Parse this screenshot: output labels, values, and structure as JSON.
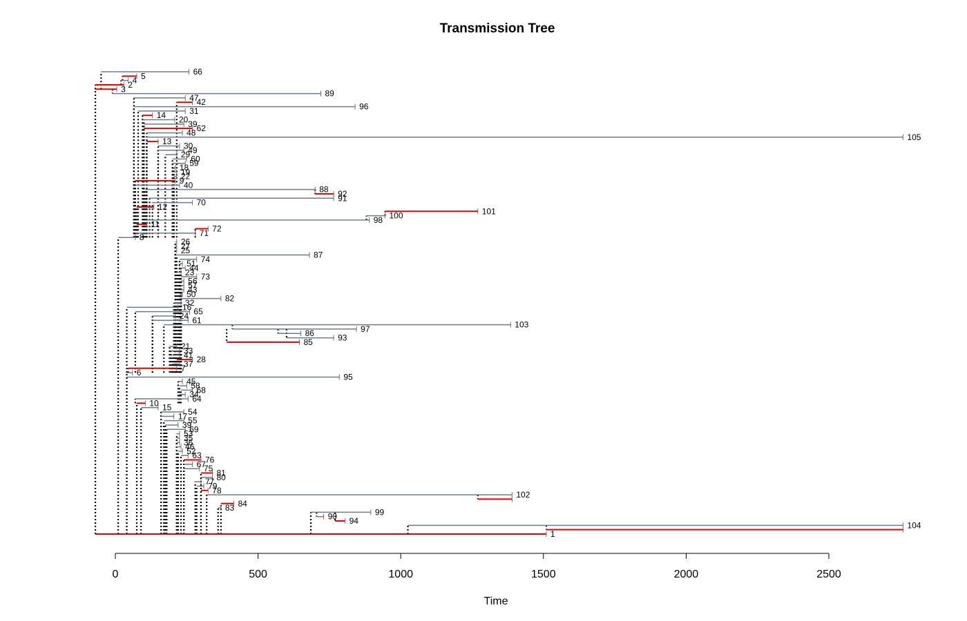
{
  "title": "Transmission Tree",
  "x_axis": {
    "label": "Time",
    "min": -50,
    "max": 2800,
    "ticks": [
      0,
      500,
      1000,
      1500,
      2000,
      2500
    ]
  },
  "colors": {
    "branch": "#6b7b8c",
    "red_branch": "#e00000",
    "link": "#000000",
    "sample_tick": "#7a6a6a"
  },
  "nodes": [
    {
      "id": "66",
      "label": "66",
      "parent": "3",
      "start": -50,
      "end": 258
    },
    {
      "id": "5",
      "label": "5",
      "parent": "4",
      "start": 25,
      "end": 75,
      "red": true
    },
    {
      "id": "4",
      "label": "4",
      "parent": "2",
      "start": 20,
      "end": 45
    },
    {
      "id": "2",
      "label": "2",
      "parent": "3",
      "start": -70,
      "end": 30,
      "red": true
    },
    {
      "id": "3",
      "label": "3",
      "parent": "1",
      "start": -70,
      "end": 5,
      "red": true
    },
    {
      "id": "89",
      "label": "89",
      "parent": "3",
      "start": -10,
      "end": 720
    },
    {
      "id": "47",
      "label": "47",
      "parent": "8",
      "start": 65,
      "end": 245
    },
    {
      "id": "42",
      "label": "42",
      "parent": "8",
      "start": 215,
      "end": 270,
      "red": true
    },
    {
      "id": "96",
      "label": "96",
      "parent": "8",
      "start": 65,
      "end": 840
    },
    {
      "id": "31",
      "label": "31",
      "parent": "8",
      "start": 80,
      "end": 245
    },
    {
      "id": "14",
      "label": "14",
      "parent": "8",
      "start": 95,
      "end": 130,
      "red": true
    },
    {
      "id": "20",
      "label": "20",
      "parent": "8",
      "start": 100,
      "end": 208
    },
    {
      "id": "39",
      "label": "39",
      "parent": "8",
      "start": 100,
      "end": 240
    },
    {
      "id": "62",
      "label": "62",
      "parent": "8",
      "start": 100,
      "end": 270,
      "red": true
    },
    {
      "id": "48",
      "label": "48",
      "parent": "8",
      "start": 110,
      "end": 235
    },
    {
      "id": "105",
      "label": "105",
      "parent": "8",
      "start": 110,
      "end": 2760
    },
    {
      "id": "13",
      "label": "13",
      "parent": "8",
      "start": 110,
      "end": 150,
      "red": true
    },
    {
      "id": "30",
      "label": "30",
      "parent": "8",
      "start": 150,
      "end": 225
    },
    {
      "id": "49",
      "label": "49",
      "parent": "8",
      "start": 150,
      "end": 240
    },
    {
      "id": "29",
      "label": "29",
      "parent": "8",
      "start": 175,
      "end": 215
    },
    {
      "id": "60",
      "label": "60",
      "parent": "8",
      "start": 200,
      "end": 250
    },
    {
      "id": "59",
      "label": "59",
      "parent": "8",
      "start": 200,
      "end": 245
    },
    {
      "id": "18",
      "label": "18",
      "parent": "8",
      "start": 205,
      "end": 210
    },
    {
      "id": "19",
      "label": "19",
      "parent": "8",
      "start": 205,
      "end": 215
    },
    {
      "id": "22",
      "label": "22",
      "parent": "8",
      "start": 205,
      "end": 215
    },
    {
      "id": "9",
      "label": "9",
      "parent": "8",
      "start": 70,
      "end": 210,
      "red": true
    },
    {
      "id": "40",
      "label": "40",
      "parent": "8",
      "start": 70,
      "end": 225
    },
    {
      "id": "88",
      "label": "88",
      "parent": "8",
      "start": 105,
      "end": 700
    },
    {
      "id": "92",
      "label": "92",
      "parent": "88",
      "start": 700,
      "end": 765,
      "red": true
    },
    {
      "id": "91",
      "label": "91",
      "parent": "8",
      "start": 120,
      "end": 765
    },
    {
      "id": "70",
      "label": "70",
      "parent": "8",
      "start": 130,
      "end": 270
    },
    {
      "id": "12",
      "label": "12",
      "parent": "8",
      "start": 75,
      "end": 135,
      "red": true
    },
    {
      "id": "101",
      "label": "101",
      "parent": "100",
      "start": 945,
      "end": 1270,
      "red": true
    },
    {
      "id": "100",
      "label": "100",
      "parent": "98",
      "start": 880,
      "end": 945
    },
    {
      "id": "98",
      "label": "98",
      "parent": "8",
      "start": 110,
      "end": 890
    },
    {
      "id": "11",
      "label": "11",
      "parent": "8",
      "start": 75,
      "end": 110,
      "red": true
    },
    {
      "id": "72",
      "label": "72",
      "parent": "8",
      "start": 280,
      "end": 325,
      "red": true
    },
    {
      "id": "71",
      "label": "71",
      "parent": "8",
      "start": 70,
      "end": 280
    },
    {
      "id": "8",
      "label": "8",
      "parent": "1",
      "start": 10,
      "end": 70
    },
    {
      "id": "26",
      "label": "26",
      "parent": "6",
      "start": 210,
      "end": 215
    },
    {
      "id": "27",
      "label": "27",
      "parent": "6",
      "start": 210,
      "end": 215
    },
    {
      "id": "25",
      "label": "25",
      "parent": "6",
      "start": 210,
      "end": 215
    },
    {
      "id": "87",
      "label": "87",
      "parent": "6",
      "start": 215,
      "end": 680
    },
    {
      "id": "74",
      "label": "74",
      "parent": "6",
      "start": 225,
      "end": 285
    },
    {
      "id": "51",
      "label": "51",
      "parent": "6",
      "start": 225,
      "end": 235
    },
    {
      "id": "44",
      "label": "44",
      "parent": "6",
      "start": 230,
      "end": 245
    },
    {
      "id": "23",
      "label": "23",
      "parent": "6",
      "start": 220,
      "end": 230
    },
    {
      "id": "73",
      "label": "73",
      "parent": "6",
      "start": 230,
      "end": 285
    },
    {
      "id": "56",
      "label": "56",
      "parent": "6",
      "start": 230,
      "end": 240
    },
    {
      "id": "57",
      "label": "57",
      "parent": "6",
      "start": 230,
      "end": 240
    },
    {
      "id": "43",
      "label": "43",
      "parent": "6",
      "start": 230,
      "end": 240
    },
    {
      "id": "50",
      "label": "50",
      "parent": "6",
      "start": 225,
      "end": 235
    },
    {
      "id": "82",
      "label": "82",
      "parent": "6",
      "start": 225,
      "end": 370
    },
    {
      "id": "32",
      "label": "32",
      "parent": "6",
      "start": 205,
      "end": 230
    },
    {
      "id": "16",
      "label": "16",
      "parent": "6",
      "start": 40,
      "end": 220
    },
    {
      "id": "65",
      "label": "65",
      "parent": "6",
      "start": 70,
      "end": 260
    },
    {
      "id": "24",
      "label": "24",
      "parent": "6",
      "start": 130,
      "end": 210
    },
    {
      "id": "61",
      "label": "61",
      "parent": "6",
      "start": 130,
      "end": 255
    },
    {
      "id": "103",
      "label": "103",
      "parent": "6",
      "start": 170,
      "end": 1385
    },
    {
      "id": "97",
      "label": "97",
      "parent": "103",
      "start": 410,
      "end": 845
    },
    {
      "id": "86",
      "label": "86",
      "parent": "97",
      "start": 570,
      "end": 650
    },
    {
      "id": "93",
      "label": "93",
      "parent": "97",
      "start": 600,
      "end": 765
    },
    {
      "id": "85",
      "label": "85",
      "parent": "97",
      "start": 390,
      "end": 645,
      "red": true
    },
    {
      "id": "21",
      "label": "21",
      "parent": "6",
      "start": 190,
      "end": 215
    },
    {
      "id": "33",
      "label": "33",
      "parent": "6",
      "start": 195,
      "end": 225
    },
    {
      "id": "41",
      "label": "41",
      "parent": "6",
      "start": 200,
      "end": 225
    },
    {
      "id": "28",
      "label": "28",
      "parent": "6",
      "start": 215,
      "end": 270,
      "red": true
    },
    {
      "id": "37",
      "label": "37",
      "parent": "6",
      "start": 200,
      "end": 225
    },
    {
      "id": "7",
      "label": "7",
      "parent": "6",
      "start": 45,
      "end": 215,
      "red": true
    },
    {
      "id": "6",
      "label": "6",
      "parent": "1",
      "start": 40,
      "end": 60
    },
    {
      "id": "95",
      "label": "95",
      "parent": "1",
      "start": 40,
      "end": 785
    },
    {
      "id": "45",
      "label": "45",
      "parent": "10",
      "start": 220,
      "end": 235
    },
    {
      "id": "58",
      "label": "58",
      "parent": "10",
      "start": 225,
      "end": 250
    },
    {
      "id": "68",
      "label": "68",
      "parent": "10",
      "start": 230,
      "end": 270
    },
    {
      "id": "34",
      "label": "34",
      "parent": "10",
      "start": 225,
      "end": 245
    },
    {
      "id": "64",
      "label": "64",
      "parent": "10",
      "start": 70,
      "end": 255
    },
    {
      "id": "10",
      "label": "10",
      "parent": "1",
      "start": 75,
      "end": 105,
      "red": true
    },
    {
      "id": "15",
      "label": "15",
      "parent": "1",
      "start": 90,
      "end": 150
    },
    {
      "id": "54",
      "label": "54",
      "parent": "1",
      "start": 160,
      "end": 240
    },
    {
      "id": "17",
      "label": "17",
      "parent": "1",
      "start": 160,
      "end": 205
    },
    {
      "id": "55",
      "label": "55",
      "parent": "1",
      "start": 170,
      "end": 240
    },
    {
      "id": "39b",
      "label": "39",
      "parent": "1",
      "start": 175,
      "end": 220
    },
    {
      "id": "69",
      "label": "69",
      "parent": "1",
      "start": 180,
      "end": 245
    },
    {
      "id": "53",
      "label": "53",
      "parent": "1",
      "start": 215,
      "end": 225
    },
    {
      "id": "35",
      "label": "35",
      "parent": "1",
      "start": 215,
      "end": 225
    },
    {
      "id": "36",
      "label": "36",
      "parent": "1",
      "start": 215,
      "end": 225
    },
    {
      "id": "46",
      "label": "46",
      "parent": "1",
      "start": 215,
      "end": 230
    },
    {
      "id": "52",
      "label": "52",
      "parent": "1",
      "start": 220,
      "end": 235
    },
    {
      "id": "63",
      "label": "63",
      "parent": "1",
      "start": 230,
      "end": 255
    },
    {
      "id": "76",
      "label": "76",
      "parent": "1",
      "start": 240,
      "end": 300,
      "red": true
    },
    {
      "id": "67",
      "label": "67",
      "parent": "1",
      "start": 240,
      "end": 270
    },
    {
      "id": "75",
      "label": "75",
      "parent": "1",
      "start": 240,
      "end": 295
    },
    {
      "id": "81",
      "label": "81",
      "parent": "1",
      "start": 300,
      "end": 340,
      "red": true
    },
    {
      "id": "80",
      "label": "80",
      "parent": "1",
      "start": 300,
      "end": 340
    },
    {
      "id": "77",
      "label": "77",
      "parent": "1",
      "start": 280,
      "end": 300
    },
    {
      "id": "79",
      "label": "79",
      "parent": "1",
      "start": 285,
      "end": 310
    },
    {
      "id": "78",
      "label": "78",
      "parent": "1",
      "start": 300,
      "end": 325,
      "red": true
    },
    {
      "id": "102",
      "label": "102",
      "parent": "1",
      "start": 320,
      "end": 1390
    },
    {
      "id": "102r",
      "label": "",
      "parent": "102",
      "start": 1270,
      "end": 1390,
      "red": true
    },
    {
      "id": "84",
      "label": "84",
      "parent": "1",
      "start": 370,
      "end": 415,
      "red": true
    },
    {
      "id": "83",
      "label": "83",
      "parent": "1",
      "start": 360,
      "end": 370
    },
    {
      "id": "99",
      "label": "99",
      "parent": "1",
      "start": 685,
      "end": 895
    },
    {
      "id": "90",
      "label": "90",
      "parent": "99",
      "start": 705,
      "end": 730
    },
    {
      "id": "94",
      "label": "94",
      "parent": "99",
      "start": 770,
      "end": 805,
      "red": true
    },
    {
      "id": "104",
      "label": "104",
      "parent": "1",
      "start": 1025,
      "end": 2760
    },
    {
      "id": "104r",
      "label": "",
      "parent": "104",
      "start": 1510,
      "end": 2760,
      "red": true
    },
    {
      "id": "1",
      "label": "1",
      "parent": null,
      "start": -70,
      "end": 1510,
      "red": true
    }
  ]
}
